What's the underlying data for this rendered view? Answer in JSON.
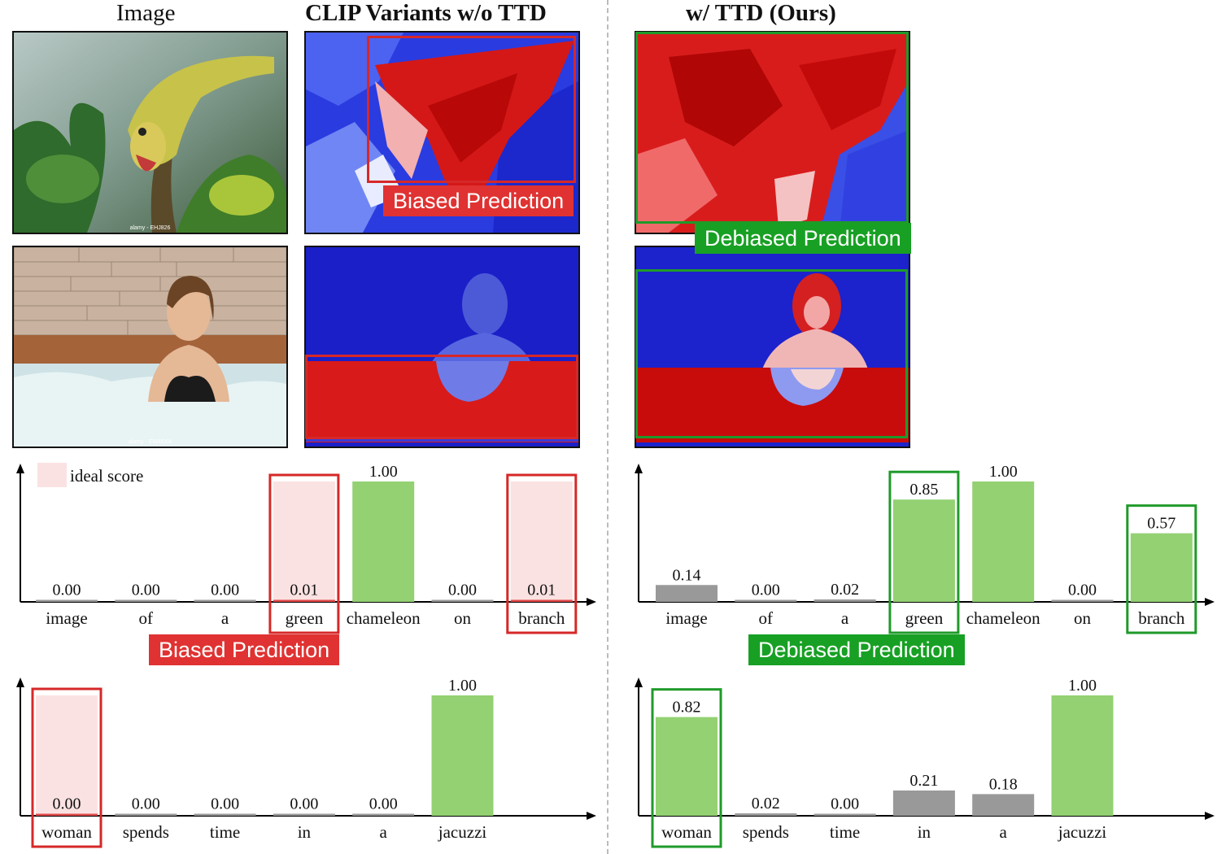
{
  "headers": {
    "image": "Image",
    "baseline": "CLIP Variants w/o TTD",
    "ours": "w/ TTD (Ours)"
  },
  "watermarks": {
    "chameleon": "alamy - EHJ826",
    "woman": "alamy - EMA5XA"
  },
  "tags": {
    "biased": "Biased Prediction",
    "debiased": "Debiased Prediction"
  },
  "legend": {
    "ideal": "ideal score"
  },
  "colors": {
    "green_bar": "#93d172",
    "gray_bar": "#999999",
    "red_bar": "#e04848",
    "ideal_fill": "#fbe2e2",
    "red_box": "#d62828",
    "green_box": "#1f9a2a",
    "heat_hot": "#d00000",
    "heat_cold": "#1a1ad8"
  },
  "chart_data": [
    {
      "type": "bar",
      "categories": [
        "image",
        "of",
        "a",
        "green",
        "chameleon",
        "on",
        "branch"
      ],
      "values": [
        0.0,
        0.0,
        0.0,
        0.01,
        1.0,
        0.0,
        0.01
      ],
      "labels": [
        "0.00",
        "0.00",
        "0.00",
        "0.01",
        "1.00",
        "0.00",
        "0.01"
      ],
      "ideal": [
        false,
        false,
        false,
        true,
        false,
        false,
        true
      ],
      "highlight": [
        3,
        6
      ],
      "ylim": [
        0,
        1
      ]
    },
    {
      "type": "bar",
      "categories": [
        "image",
        "of",
        "a",
        "green",
        "chameleon",
        "on",
        "branch"
      ],
      "values": [
        0.14,
        0.0,
        0.02,
        0.85,
        1.0,
        0.0,
        0.57
      ],
      "labels": [
        "0.14",
        "0.00",
        "0.02",
        "0.85",
        "1.00",
        "0.00",
        "0.57"
      ],
      "ideal": [
        false,
        false,
        false,
        false,
        false,
        false,
        false
      ],
      "highlight": [
        3,
        6
      ],
      "ylim": [
        0,
        1
      ]
    },
    {
      "type": "bar",
      "categories": [
        "woman",
        "spends",
        "time",
        "in",
        "a",
        "jacuzzi"
      ],
      "values": [
        0.0,
        0.0,
        0.0,
        0.0,
        0.0,
        1.0
      ],
      "labels": [
        "0.00",
        "0.00",
        "0.00",
        "0.00",
        "0.00",
        "1.00"
      ],
      "ideal": [
        true,
        false,
        false,
        false,
        false,
        false
      ],
      "highlight": [
        0
      ],
      "ylim": [
        0,
        1
      ]
    },
    {
      "type": "bar",
      "categories": [
        "woman",
        "spends",
        "time",
        "in",
        "a",
        "jacuzzi"
      ],
      "values": [
        0.82,
        0.02,
        0.0,
        0.21,
        0.18,
        1.0
      ],
      "labels": [
        "0.82",
        "0.02",
        "0.00",
        "0.21",
        "0.18",
        "1.00"
      ],
      "ideal": [
        false,
        false,
        false,
        false,
        false,
        false
      ],
      "highlight": [
        0
      ],
      "ylim": [
        0,
        1
      ]
    }
  ]
}
